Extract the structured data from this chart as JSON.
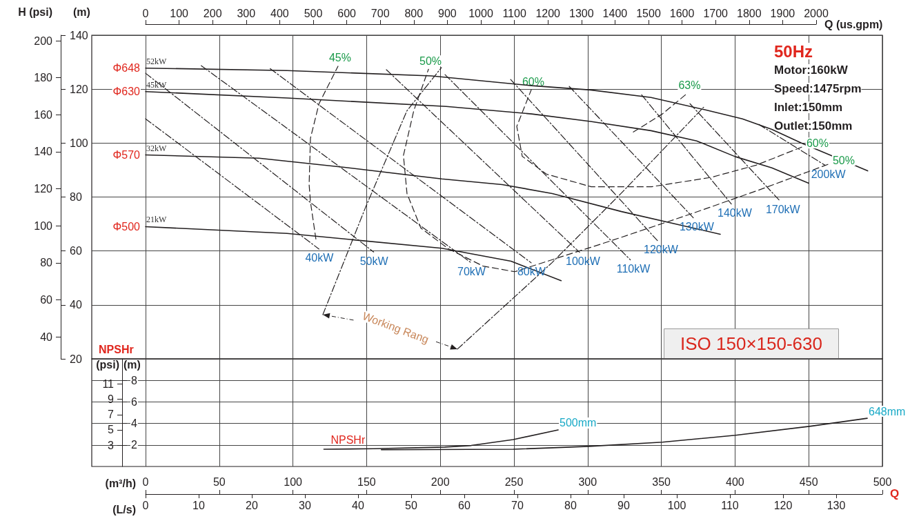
{
  "chart_data": [
    {
      "type": "line",
      "title": "ISO 150×150-630",
      "subtitle": "50Hz",
      "xlim": [
        -36.5,
        500
      ],
      "xticks": [
        0,
        50,
        100,
        150,
        200,
        250,
        300,
        350,
        400,
        450,
        500
      ],
      "x2lim": [
        0,
        2000
      ],
      "x2ticks": [
        0,
        100,
        200,
        300,
        400,
        500,
        600,
        700,
        800,
        900,
        1000,
        1100,
        1200,
        1300,
        1400,
        1500,
        1600,
        1700,
        1800,
        1900,
        2000
      ],
      "x2label": "Q (us.gpm)",
      "ylim": [
        20,
        140
      ],
      "yticks": [
        20,
        40,
        60,
        80,
        100,
        120,
        140
      ],
      "ylabel": "(m)",
      "y2lim": [
        28.1,
        203
      ],
      "y2ticks": [
        40,
        60,
        80,
        100,
        120,
        140,
        160,
        180,
        200
      ],
      "y2label": "H (psi)",
      "tick_labels": "y",
      "grid": true,
      "legend": false,
      "marker": "none",
      "annotations": [
        "Motor:160kW",
        "Speed:1475rpm",
        "Inlet:150mm",
        "Outlet:150mm",
        {
          "text": "52kW",
          "x": 0,
          "y": 127.8
        },
        {
          "text": "45kW",
          "x": 0,
          "y": 119.1
        },
        {
          "text": "32kW",
          "x": 0,
          "y": 95.6
        },
        {
          "text": "21kW",
          "x": 0,
          "y": 69
        },
        {
          "text": "50%",
          "x": 463,
          "y": 92.1
        },
        {
          "text": "60%",
          "x": 445.2,
          "y": 98.5
        },
        "Working Rang"
      ],
      "series": [
        {
          "name": "Φ648",
          "color": "#231f20",
          "line_style": "solid",
          "x": [
            490,
            445,
            425,
            405,
            380,
            343,
            302,
            262,
            194,
            96,
            0
          ],
          "values": [
            89.7,
            100,
            105.1,
            109,
            112.3,
            116.9,
            119.7,
            121.3,
            124.9,
            126.9,
            127.8
          ]
        },
        {
          "name": "Φ630",
          "color": "#231f20",
          "line_style": "solid",
          "x": [
            450,
            425,
            400,
            374,
            343,
            302,
            262,
            204,
            96,
            0
          ],
          "values": [
            85.1,
            90.8,
            95,
            100.8,
            104.6,
            108,
            110.8,
            113.6,
            116.7,
            119.1
          ]
        },
        {
          "name": "Φ570",
          "color": "#231f20",
          "line_style": "solid",
          "x": [
            390,
            323,
            276,
            242,
            201,
            135,
            77,
            0
          ],
          "values": [
            66.2,
            74.6,
            81.3,
            84.6,
            86.7,
            91,
            94.4,
            95.6
          ]
        },
        {
          "name": "Φ500",
          "color": "#231f20",
          "line_style": "solid",
          "x": [
            282,
            248,
            201,
            96,
            0
          ],
          "values": [
            49,
            56.2,
            61,
            66.5,
            69
          ]
        },
        {
          "name": "45%",
          "color": "#231f20",
          "line_style": "dashed",
          "x": [
            115.6,
            111.9,
            111,
            111.9,
            117.7,
            130.6
          ],
          "values": [
            64.4,
            78.2,
            84.6,
            101.8,
            114.6,
            128.5
          ]
        },
        {
          "name": "50%",
          "color": "#231f20",
          "line_style": "dashed",
          "x": [
            463,
            416.2,
            369.4,
            313.2,
            250.5,
            229,
            205.5,
            186.8,
            177.4,
            175,
            182,
            192
          ],
          "values": [
            92.1,
            82.6,
            73.6,
            63.3,
            52.3,
            54.4,
            60.8,
            68.5,
            81.3,
            95.4,
            112,
            127.4
          ]
        },
        {
          "name": "60%",
          "color": "#231f20",
          "line_style": "dashed",
          "x": [
            445.2,
            414.3,
            383.9,
            343.2,
            302.4,
            272,
            255.6,
            251.9,
            261.7
          ],
          "values": [
            98.5,
            91.8,
            87.3,
            83.8,
            83.8,
            88.5,
            95.1,
            106.2,
            119.7
          ]
        },
        {
          "name": "63%",
          "color": "#231f20",
          "line_style": "dashed",
          "x": [
            331,
            350.7,
            367.7
          ],
          "values": [
            104.1,
            110.8,
            118.5
          ]
        },
        {
          "name": "40kW",
          "color": "#231f20",
          "line_style": "dotted",
          "x": [
            0,
            117.7
          ],
          "values": [
            109,
            60.7
          ]
        },
        {
          "name": "50kW",
          "color": "#231f20",
          "line_style": "dotted",
          "x": [
            0,
            154.8
          ],
          "values": [
            125.9,
            59.6
          ]
        },
        {
          "name": "70kW",
          "color": "#231f20",
          "line_style": "dotted",
          "x": [
            37.8,
            221
          ],
          "values": [
            128.7,
            55.6
          ]
        },
        {
          "name": "80kW",
          "color": "#231f20",
          "line_style": "dotted",
          "x": [
            84.6,
            261.7
          ],
          "values": [
            127.6,
            55.6
          ]
        },
        {
          "name": "100kW",
          "color": "#231f20",
          "line_style": "dotted",
          "x": [
            163.4,
            294.5
          ],
          "values": [
            127.2,
            59.5
          ]
        },
        {
          "name": "110kW",
          "color": "#231f20",
          "line_style": "dotted",
          "x": [
            203.2,
            329
          ],
          "values": [
            125.4,
            56.7
          ]
        },
        {
          "name": "120kW",
          "color": "#231f20",
          "line_style": "dotted",
          "x": [
            247.7,
            347.4
          ],
          "values": [
            123.6,
            63.8
          ]
        },
        {
          "name": "130kW",
          "color": "#231f20",
          "line_style": "dotted",
          "x": [
            287.5,
            371.7
          ],
          "values": [
            121,
            72.3
          ]
        },
        {
          "name": "140kW",
          "color": "#231f20",
          "line_style": "dotted",
          "x": [
            336.6,
            397.5
          ],
          "values": [
            117.9,
            77.4
          ]
        },
        {
          "name": "170kW",
          "color": "#231f20",
          "line_style": "dotted",
          "x": [
            369.4,
            430.2
          ],
          "values": [
            114.6,
            78.7
          ]
        },
        {
          "name": "200kW",
          "color": "#231f20",
          "line_style": "dotted",
          "x": [
            416.2,
            461
          ],
          "values": [
            106.9,
            91.8
          ]
        },
        {
          "color": "#231f20",
          "line_style": "dotted",
          "x": [
            120.3,
            149.3,
            177.4,
            200.8
          ],
          "values": [
            36.4,
            76.2,
            112,
            128
          ]
        },
        {
          "color": "#231f20",
          "line_style": "dotted",
          "x": [
            211.6,
            275.7,
            322.6,
            378.7
          ],
          "values": [
            23.6,
            55.6,
            81.3,
            113.3
          ]
        }
      ]
    },
    {
      "type": "line",
      "title": "NPSHr",
      "xlim": [
        -36.5,
        500
      ],
      "xticks": [
        0,
        50,
        100,
        150,
        200,
        250,
        300,
        350,
        400,
        450,
        500
      ],
      "xlabel": "(m³/h)",
      "x2lim": [
        0,
        138.7
      ],
      "x2ticks": [
        0,
        10,
        20,
        30,
        40,
        50,
        60,
        70,
        80,
        90,
        100,
        110,
        120,
        130
      ],
      "x2label": "(L/s)",
      "ylim": [
        0,
        10
      ],
      "yticks": [
        2,
        4,
        6,
        8
      ],
      "ylabel": "(m)",
      "y2lim": [
        0.2,
        14.3
      ],
      "y2ticks": [
        3,
        5,
        7,
        9,
        11
      ],
      "y2label": "(psi)",
      "grid": true,
      "legend": false,
      "marker": "none",
      "annotations": [
        "Q",
        "NPSHr"
      ],
      "series": [
        {
          "name": "500mm",
          "color": "#231f20",
          "line_style": "solid",
          "x": [
            121,
            155,
            203,
            221,
            249.5,
            280
          ],
          "values": [
            1.6,
            1.65,
            1.8,
            1.95,
            2.5,
            3.4
          ]
        },
        {
          "name": "648mm",
          "color": "#231f20",
          "line_style": "solid",
          "x": [
            160,
            249.5,
            300.6,
            350.7,
            400.3,
            451.3,
            489.7
          ],
          "values": [
            1.55,
            1.6,
            1.87,
            2.26,
            2.9,
            3.74,
            4.48
          ]
        }
      ]
    }
  ]
}
